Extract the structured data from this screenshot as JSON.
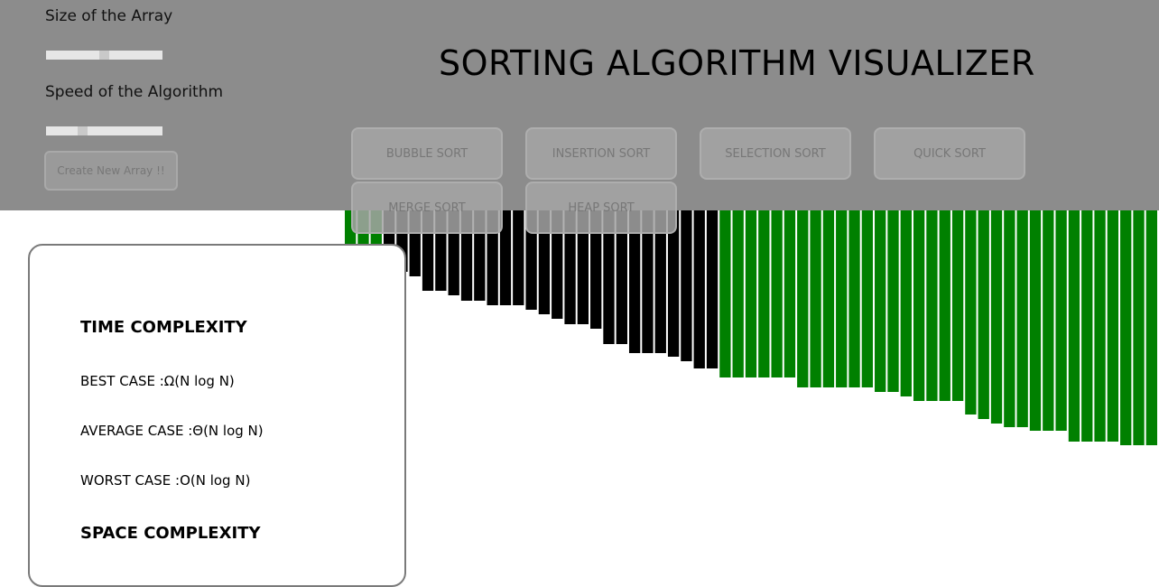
{
  "controls": {
    "size_label": "Size of the Array",
    "size_value": 0.5,
    "speed_label": "Speed of the Algorithm",
    "speed_value": 0.3,
    "create_button": "Create New Array !!"
  },
  "title": "SORTING ALGORITHM VISUALIZER",
  "algorithms": [
    "BUBBLE SORT",
    "INSERTION SORT",
    "SELECTION SORT",
    "QUICK SORT",
    "MERGE SORT",
    "HEAP SORT"
  ],
  "complexity": {
    "time_heading": "TIME COMPLEXITY",
    "best_case": "BEST CASE :Ω(N log N)",
    "average_case": "AVERAGE CASE :Θ(N log N)",
    "worst_case": "WORST CASE :O(N log N)",
    "space_heading": "SPACE COMPLEXITY"
  },
  "colors": {
    "header_bg": "#8c8c8c",
    "sorted_bar": "#008000",
    "unsorted_bar": "#000000"
  },
  "bars": {
    "max_height": 402,
    "values": [
      64,
      68,
      68,
      68,
      68,
      73,
      89,
      89,
      94,
      100,
      100,
      105,
      105,
      105,
      110,
      115,
      120,
      126,
      126,
      131,
      148,
      148,
      158,
      158,
      158,
      162,
      167,
      175,
      175,
      185,
      185,
      185,
      185,
      185,
      185,
      196,
      196,
      196,
      196,
      196,
      196,
      201,
      201,
      206,
      211,
      211,
      211,
      211,
      226,
      231,
      236,
      240,
      240,
      244,
      244,
      244,
      256,
      256,
      256,
      256,
      260,
      260,
      260
    ],
    "states": [
      "sorted",
      "sorted",
      "sorted",
      "unsorted",
      "unsorted",
      "unsorted",
      "unsorted",
      "unsorted",
      "unsorted",
      "unsorted",
      "unsorted",
      "unsorted",
      "unsorted",
      "unsorted",
      "unsorted",
      "unsorted",
      "unsorted",
      "unsorted",
      "unsorted",
      "unsorted",
      "unsorted",
      "unsorted",
      "unsorted",
      "unsorted",
      "unsorted",
      "unsorted",
      "unsorted",
      "unsorted",
      "unsorted",
      "sorted",
      "sorted",
      "sorted",
      "sorted",
      "sorted",
      "sorted",
      "sorted",
      "sorted",
      "sorted",
      "sorted",
      "sorted",
      "sorted",
      "sorted",
      "sorted",
      "sorted",
      "sorted",
      "sorted",
      "sorted",
      "sorted",
      "sorted",
      "sorted",
      "sorted",
      "sorted",
      "sorted",
      "sorted",
      "sorted",
      "sorted",
      "sorted",
      "sorted",
      "sorted",
      "sorted",
      "sorted",
      "sorted",
      "sorted"
    ]
  }
}
